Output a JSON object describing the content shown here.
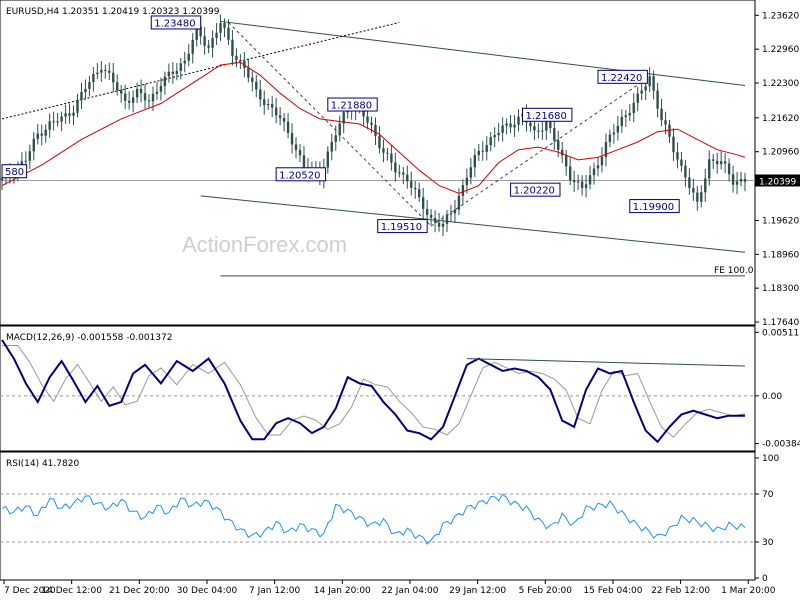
{
  "chart_data": [
    {
      "type": "candlestick",
      "title": "EURUSD,H4  1.20351 1.20419 1.20323 1.20399",
      "last_price": "1.20399",
      "y_ticks": [
        "1.23620",
        "1.22960",
        "1.22300",
        "1.21620",
        "1.20960",
        "1.19620",
        "1.18960",
        "1.18300",
        "1.17640"
      ],
      "ylim": [
        1.1764,
        1.2384
      ],
      "x_ticks": [
        "7 Dec 2020",
        "14 Dec 12:00",
        "21 Dec 20:00",
        "30 Dec 04:00",
        "7 Jan 12:00",
        "14 Jan 20:00",
        "22 Jan 04:00",
        "29 Jan 12:00",
        "5 Feb 20:00",
        "15 Feb 04:00",
        "22 Feb 12:00",
        "1 Mar 20:00"
      ],
      "close_series": {
        "x": [
          0,
          3,
          6,
          9,
          12,
          15,
          18,
          21,
          25,
          28,
          31,
          34,
          37,
          40,
          43,
          46,
          49,
          52,
          55,
          58,
          61,
          64,
          67,
          70,
          73,
          76,
          80,
          84,
          87,
          90,
          93,
          96,
          99,
          102,
          105,
          108,
          111,
          114,
          117,
          120,
          124,
          128,
          131,
          134,
          137,
          140,
          143,
          146,
          149,
          152,
          156,
          160,
          163,
          166,
          169,
          172,
          175,
          178,
          181,
          184,
          187
        ],
        "y": [
          1.204,
          1.206,
          1.208,
          1.213,
          1.215,
          1.216,
          1.218,
          1.222,
          1.2265,
          1.223,
          1.2195,
          1.221,
          1.2195,
          1.223,
          1.225,
          1.2275,
          1.233,
          1.23,
          1.2348,
          1.229,
          1.226,
          1.221,
          1.2188,
          1.216,
          1.212,
          1.2065,
          1.2052,
          1.213,
          1.2188,
          1.2175,
          1.2145,
          1.2095,
          1.206,
          1.2045,
          1.2,
          1.1965,
          1.1951,
          1.199,
          1.205,
          1.2095,
          1.213,
          1.215,
          1.2168,
          1.213,
          1.2155,
          1.21,
          1.205,
          1.2022,
          1.206,
          1.211,
          1.216,
          1.22,
          1.2242,
          1.216,
          1.21,
          1.205,
          1.199,
          1.208,
          1.2075,
          1.204,
          1.204
        ]
      },
      "ma_series": {
        "x": [
          0,
          10,
          20,
          30,
          40,
          45,
          50,
          55,
          60,
          65,
          70,
          75,
          80,
          85,
          90,
          95,
          100,
          105,
          110,
          115,
          120,
          125,
          130,
          135,
          140,
          145,
          150,
          155,
          160,
          165,
          170,
          175,
          180,
          185,
          187
        ],
        "y": [
          1.203,
          1.207,
          1.212,
          1.216,
          1.219,
          1.2215,
          1.224,
          1.2265,
          1.227,
          1.2245,
          1.221,
          1.218,
          1.216,
          1.2155,
          1.215,
          1.213,
          1.2095,
          1.206,
          1.203,
          1.2015,
          1.203,
          1.2075,
          1.21,
          1.2105,
          1.2095,
          1.208,
          1.2085,
          1.21,
          1.2115,
          1.2135,
          1.214,
          1.212,
          1.21,
          1.209,
          1.2085
        ]
      },
      "channel_upper": {
        "x": [
          55,
          187
        ],
        "y": [
          1.235,
          1.2225
        ]
      },
      "channel_lower": {
        "x": [
          50,
          187
        ],
        "y": [
          1.201,
          1.19
        ]
      },
      "support_line": {
        "x": [
          0,
          100
        ],
        "y": [
          1.216,
          1.2348
        ]
      },
      "dashed_lines": [
        {
          "x": [
            57,
            108
          ],
          "y": [
            1.2348,
            1.1951
          ]
        },
        {
          "x": [
            108,
            163
          ],
          "y": [
            1.1951,
            1.2242
          ]
        }
      ],
      "fe_line": {
        "x": [
          55,
          187
        ],
        "y": [
          1.1854,
          1.1854
        ],
        "label": "FE 100.0"
      },
      "point_labels": [
        {
          "text": "1.23480",
          "x": 50,
          "y": 1.2348,
          "side": "left"
        },
        {
          "text": "1.21880",
          "x": 82,
          "y": 1.2188,
          "side": "right"
        },
        {
          "text": "1.20520",
          "x": 69,
          "y": 1.2052,
          "side": "right"
        },
        {
          "text": "1.21680",
          "x": 131,
          "y": 1.2168,
          "side": "right"
        },
        {
          "text": "1.20220",
          "x": 128,
          "y": 1.2022,
          "side": "right"
        },
        {
          "text": "1.19510",
          "x": 107,
          "y": 1.1951,
          "side": "left"
        },
        {
          "text": "1.22420",
          "x": 150,
          "y": 1.2242,
          "side": "right"
        },
        {
          "text": "1.19900",
          "x": 158,
          "y": 1.199,
          "side": "right"
        },
        {
          "text": "580",
          "x": 0,
          "y": 1.2058,
          "side": "right"
        }
      ],
      "watermark": "ActionForex.com",
      "colors": {
        "candles": "#2f4f4f",
        "ma": "#d40000",
        "lines": "#2f4f4f",
        "label": "#000080",
        "price_box": "#000000"
      }
    },
    {
      "type": "line",
      "title": "MACD(12,26,9) -0.001558 -0.001372",
      "y_ticks": [
        "0.005113",
        "0.00",
        "-0.003846"
      ],
      "ylim": [
        -0.0042,
        0.0053
      ],
      "macd": {
        "x": [
          0,
          3,
          6,
          9,
          12,
          15,
          18,
          21,
          24,
          27,
          30,
          33,
          36,
          40,
          44,
          48,
          52,
          56,
          60,
          63,
          66,
          69,
          72,
          75,
          78,
          81,
          84,
          87,
          90,
          93,
          96,
          99,
          102,
          105,
          108,
          111,
          114,
          117,
          120,
          123,
          126,
          129,
          132,
          135,
          138,
          141,
          144,
          147,
          150,
          153,
          156,
          159,
          162,
          165,
          168,
          171,
          174,
          177,
          180,
          183,
          187
        ],
        "y": [
          0.0045,
          0.003,
          0.001,
          -0.0005,
          0.0015,
          0.0028,
          0.0012,
          -0.0005,
          0.0008,
          -0.0008,
          -0.0005,
          0.0018,
          0.0025,
          0.001,
          0.0028,
          0.002,
          0.003,
          0.001,
          -0.002,
          -0.0035,
          -0.0035,
          -0.0022,
          -0.0018,
          -0.0022,
          -0.003,
          -0.0025,
          -0.001,
          0.0015,
          0.001,
          0.0008,
          -0.0005,
          -0.0015,
          -0.0028,
          -0.003,
          -0.0035,
          -0.0025,
          0.0,
          0.0025,
          0.003,
          0.0025,
          0.002,
          0.0022,
          0.002,
          0.0015,
          0.0005,
          -0.002,
          -0.0025,
          0.0005,
          0.0022,
          0.0018,
          0.002,
          -0.0005,
          -0.0028,
          -0.0037,
          -0.0025,
          -0.0015,
          -0.0012,
          -0.0015,
          -0.0018,
          -0.0016,
          -0.0016
        ]
      },
      "signal_line_color": "#9a9a9a",
      "trend_line": {
        "x": [
          117,
          187
        ],
        "y": [
          0.003,
          0.0024
        ]
      },
      "colors": {
        "macd": "#000080",
        "signal": "#9a9a9a",
        "trend": "#2f4f4f"
      }
    },
    {
      "type": "line",
      "title": "RSI(14) 41.7820",
      "y_ticks": [
        "100",
        "70",
        "30",
        "0"
      ],
      "ylim": [
        0,
        100
      ],
      "levels": [
        70,
        30
      ],
      "rsi": {
        "x": [
          0,
          3,
          6,
          9,
          12,
          15,
          18,
          21,
          24,
          27,
          30,
          33,
          36,
          39,
          42,
          45,
          48,
          51,
          54,
          57,
          60,
          63,
          66,
          69,
          72,
          75,
          78,
          81,
          84,
          87,
          90,
          93,
          96,
          99,
          102,
          105,
          108,
          111,
          114,
          117,
          120,
          123,
          126,
          129,
          132,
          135,
          138,
          141,
          144,
          147,
          150,
          153,
          156,
          159,
          162,
          165,
          168,
          171,
          174,
          177,
          180,
          183,
          187
        ],
        "y": [
          58,
          55,
          60,
          52,
          66,
          58,
          62,
          68,
          62,
          58,
          65,
          55,
          50,
          60,
          54,
          66,
          60,
          64,
          58,
          48,
          40,
          35,
          38,
          46,
          38,
          44,
          40,
          36,
          60,
          56,
          50,
          44,
          48,
          36,
          40,
          34,
          30,
          44,
          50,
          58,
          62,
          66,
          68,
          62,
          58,
          48,
          42,
          52,
          44,
          58,
          60,
          62,
          54,
          46,
          40,
          34,
          40,
          50,
          48,
          44,
          40,
          44,
          42
        ]
      },
      "colors": {
        "rsi": "#1e90ff",
        "levels": "#9a9a9a"
      }
    }
  ]
}
